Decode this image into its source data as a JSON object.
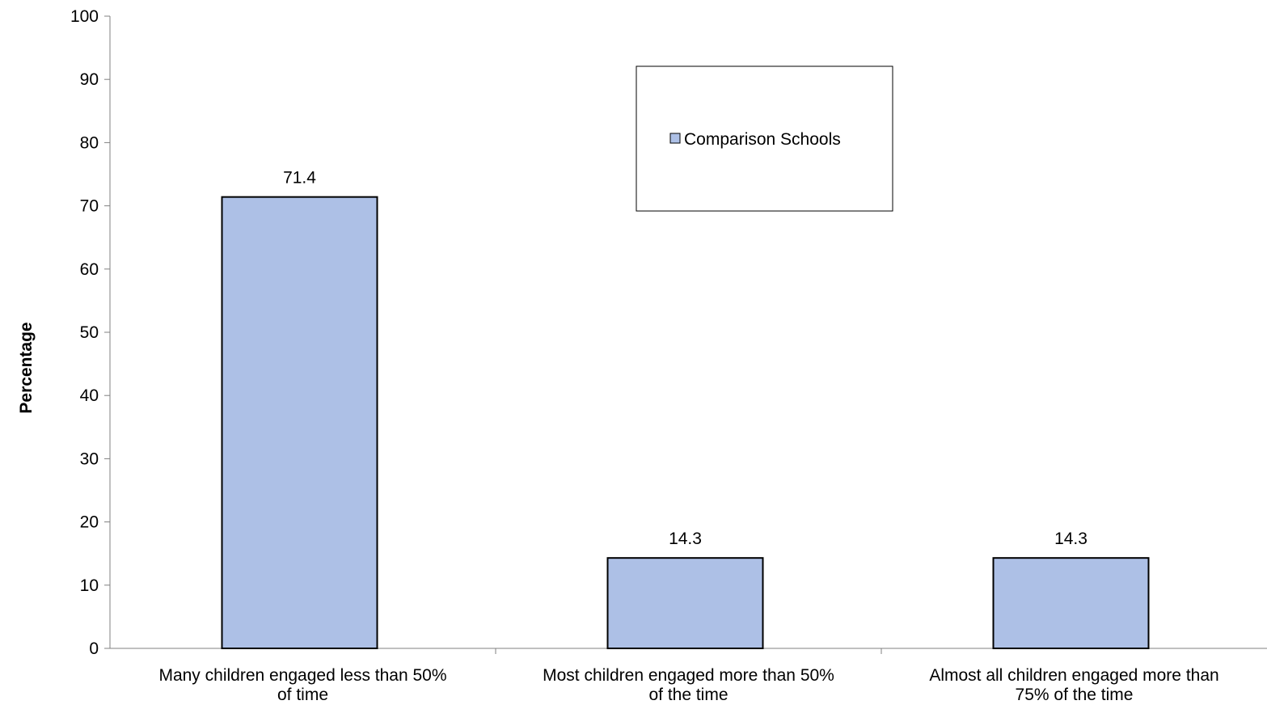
{
  "chart_data": {
    "type": "bar",
    "categories": [
      [
        "Many children engaged less than 50%",
        "of time"
      ],
      [
        "Most children engaged more than 50%",
        "of the time"
      ],
      [
        "Almost all children engaged more than",
        "75% of the time"
      ]
    ],
    "series": [
      {
        "name": "Comparison Schools",
        "values": [
          71.4,
          14.3,
          14.3
        ],
        "color": "#adc0e6"
      }
    ],
    "data_labels": [
      "71.4",
      "14.3",
      "14.3"
    ],
    "ylabel": "Percentage",
    "xlabel": "",
    "ylim": [
      0,
      100
    ],
    "yticks": [
      0,
      10,
      20,
      30,
      40,
      50,
      60,
      70,
      80,
      90,
      100
    ],
    "grid": false,
    "legend_position": "top-center"
  }
}
